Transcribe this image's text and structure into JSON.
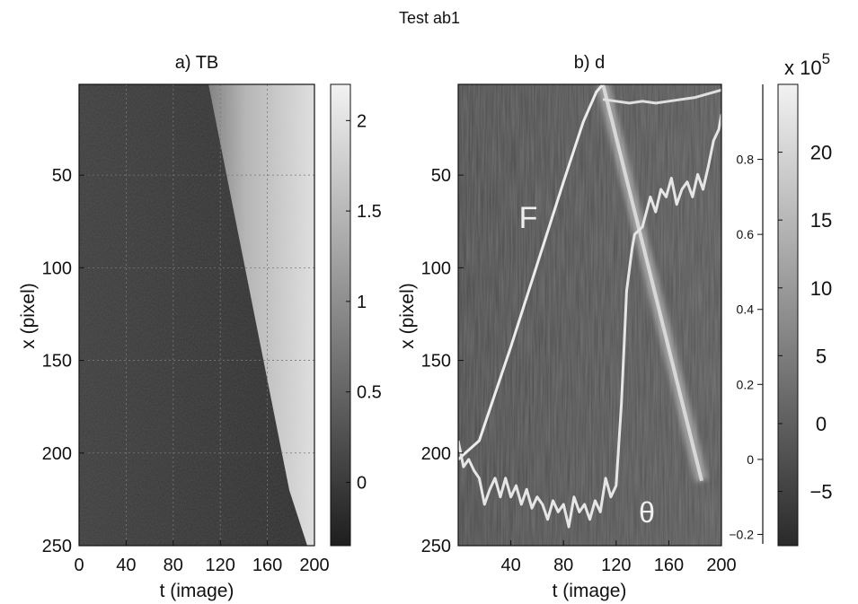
{
  "figure": {
    "title": "Test ab1"
  },
  "chart_data": [
    {
      "type": "heatmap",
      "title": "a) TB",
      "xlabel": "t (image)",
      "ylabel": "x (pixel)",
      "xlim": [
        0,
        200
      ],
      "ylim": [
        250,
        1
      ],
      "y_inverted": true,
      "xticks": [
        0,
        40,
        80,
        120,
        160,
        200
      ],
      "yticks": [
        50,
        100,
        150,
        200,
        250
      ],
      "grid": true,
      "colormap": "gray",
      "colorbar": {
        "range": [
          -0.35,
          2.2
        ],
        "ticks": [
          0,
          0.5,
          1,
          1.5,
          2
        ]
      },
      "front": {
        "t": [
          110,
          200
        ],
        "x": [
          1,
          220
        ]
      }
    },
    {
      "type": "heatmap",
      "title": "b) d",
      "xlabel": "t (image)",
      "ylabel": "x (pixel)",
      "xlim": [
        0,
        200
      ],
      "ylim": [
        250,
        1
      ],
      "y_inverted": true,
      "xticks": [
        40,
        80,
        120,
        160,
        200
      ],
      "yticks": [
        50,
        100,
        150,
        200,
        250
      ],
      "colormap": "gray",
      "colorbar": {
        "range": [
          -9,
          25
        ],
        "ticks": [
          -5,
          0,
          5,
          10,
          15,
          20
        ],
        "exponent_label": "x 10",
        "exponent_power": "5"
      },
      "right_axis": {
        "range": [
          -0.23,
          1.0
        ],
        "ticks": [
          -0.2,
          0,
          0.2,
          0.4,
          0.6,
          0.8
        ]
      },
      "annotations": [
        "F",
        "θ"
      ],
      "series": [
        {
          "name": "F",
          "t": [
            0,
            16,
            40,
            60,
            80,
            95,
            105,
            110
          ],
          "value": [
            0.0,
            0.05,
            0.3,
            0.52,
            0.74,
            0.9,
            0.98,
            1.0
          ]
        },
        {
          "name": "θ",
          "t": [
            0,
            4,
            8,
            12,
            16,
            20,
            24,
            28,
            32,
            36,
            40,
            44,
            48,
            52,
            56,
            60,
            64,
            68,
            72,
            76,
            80,
            84,
            88,
            92,
            96,
            100,
            104,
            108,
            112,
            116,
            120,
            124,
            128,
            132,
            134,
            140,
            146,
            150,
            154,
            158,
            162,
            166,
            170,
            174,
            178,
            182,
            186,
            190,
            194,
            198,
            200
          ],
          "value": [
            0.05,
            -0.02,
            0.0,
            -0.03,
            -0.05,
            -0.12,
            -0.08,
            -0.05,
            -0.1,
            -0.05,
            -0.1,
            -0.07,
            -0.12,
            -0.08,
            -0.13,
            -0.1,
            -0.12,
            -0.16,
            -0.11,
            -0.14,
            -0.12,
            -0.18,
            -0.1,
            -0.14,
            -0.12,
            -0.16,
            -0.11,
            -0.14,
            -0.05,
            -0.1,
            -0.07,
            0.15,
            0.45,
            0.56,
            0.6,
            0.62,
            0.7,
            0.66,
            0.72,
            0.7,
            0.75,
            0.68,
            0.72,
            0.74,
            0.7,
            0.76,
            0.72,
            0.78,
            0.85,
            0.88,
            0.92
          ]
        },
        {
          "name": "",
          "t": [
            110,
            120,
            130,
            140,
            150,
            160,
            170,
            180,
            190,
            200
          ],
          "value": [
            0.96,
            0.955,
            0.95,
            0.955,
            0.95,
            0.955,
            0.96,
            0.965,
            0.975,
            0.985
          ]
        }
      ],
      "ridge": {
        "t": [
          110,
          185
        ],
        "x": [
          1,
          215
        ]
      }
    }
  ]
}
